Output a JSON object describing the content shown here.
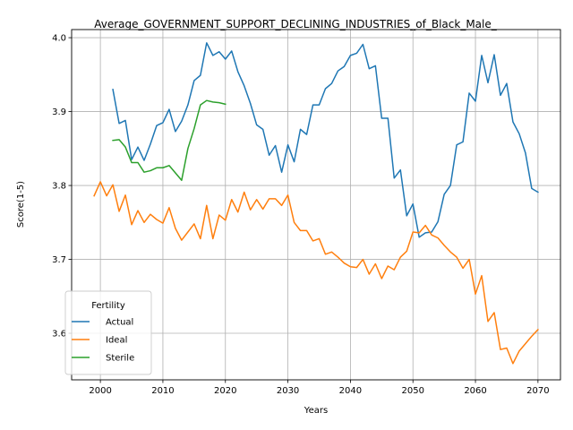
{
  "chart_data": {
    "type": "line",
    "title": "Average_GOVERNMENT_SUPPORT_DECLINING_INDUSTRIES_of_Black_Male_",
    "xlabel": "Years",
    "ylabel": "Score(1-5)",
    "xlim": [
      1995.4,
      2073.6
    ],
    "ylim": [
      3.537,
      4.011
    ],
    "xticks": [
      2000,
      2010,
      2020,
      2030,
      2040,
      2050,
      2060,
      2070
    ],
    "yticks": [
      3.6,
      3.7,
      3.8,
      3.9,
      4.0
    ],
    "xtick_labels": [
      "2000",
      "2010",
      "2020",
      "2030",
      "2040",
      "2050",
      "2060",
      "2070"
    ],
    "ytick_labels": [
      "3.6",
      "3.7",
      "3.8",
      "3.9",
      "4.0"
    ],
    "grid": true,
    "legend": {
      "title": "Fertility",
      "placement": "lower-left"
    },
    "series": [
      {
        "name": "Actual",
        "color": "#1f77b4",
        "x": [
          2002,
          2003,
          2004,
          2005,
          2006,
          2007,
          2008,
          2009,
          2010,
          2011,
          2012,
          2013,
          2014,
          2015,
          2016,
          2017,
          2018,
          2019,
          2020,
          2021,
          2022,
          2023,
          2024,
          2025,
          2026,
          2027,
          2028,
          2029,
          2030,
          2031,
          2032,
          2033,
          2034,
          2035,
          2036,
          2037,
          2038,
          2039,
          2040,
          2041,
          2042,
          2043,
          2044,
          2045,
          2046,
          2047,
          2048,
          2049,
          2050,
          2051,
          2052,
          2053,
          2054,
          2055,
          2056,
          2057,
          2058,
          2059,
          2060,
          2061,
          2062,
          2063,
          2064,
          2065,
          2066,
          2067,
          2068,
          2069,
          2070
        ],
        "y": [
          3.93,
          3.884,
          3.888,
          3.835,
          3.852,
          3.834,
          3.856,
          3.881,
          3.885,
          3.903,
          3.873,
          3.887,
          3.909,
          3.942,
          3.949,
          3.993,
          3.976,
          3.981,
          3.971,
          3.982,
          3.954,
          3.935,
          3.911,
          3.882,
          3.876,
          3.841,
          3.854,
          3.818,
          3.855,
          3.832,
          3.876,
          3.869,
          3.909,
          3.909,
          3.931,
          3.938,
          3.955,
          3.961,
          3.976,
          3.979,
          3.991,
          3.958,
          3.962,
          3.891,
          3.891,
          3.81,
          3.821,
          3.759,
          3.775,
          3.73,
          3.736,
          3.737,
          3.751,
          3.788,
          3.8,
          3.855,
          3.859,
          3.925,
          3.914,
          3.976,
          3.939,
          3.977,
          3.922,
          3.938,
          3.886,
          3.87,
          3.844,
          3.796,
          3.791
        ]
      },
      {
        "name": "Ideal",
        "color": "#ff7f0e",
        "x": [
          1999,
          2000,
          2001,
          2002,
          2003,
          2004,
          2005,
          2006,
          2007,
          2008,
          2009,
          2010,
          2011,
          2012,
          2013,
          2014,
          2015,
          2016,
          2017,
          2018,
          2019,
          2020,
          2021,
          2022,
          2023,
          2024,
          2025,
          2026,
          2027,
          2028,
          2029,
          2030,
          2031,
          2032,
          2033,
          2034,
          2035,
          2036,
          2037,
          2038,
          2039,
          2040,
          2041,
          2042,
          2043,
          2044,
          2045,
          2046,
          2047,
          2048,
          2049,
          2050,
          2051,
          2052,
          2053,
          2054,
          2055,
          2056,
          2057,
          2058,
          2059,
          2060,
          2061,
          2062,
          2063,
          2064,
          2065,
          2066,
          2067,
          2068,
          2069,
          2070
        ],
        "y": [
          3.786,
          3.805,
          3.786,
          3.801,
          3.765,
          3.787,
          3.747,
          3.766,
          3.75,
          3.761,
          3.754,
          3.749,
          3.77,
          3.742,
          3.726,
          3.737,
          3.748,
          3.728,
          3.773,
          3.728,
          3.76,
          3.753,
          3.781,
          3.764,
          3.791,
          3.767,
          3.781,
          3.768,
          3.782,
          3.782,
          3.773,
          3.787,
          3.75,
          3.739,
          3.739,
          3.725,
          3.728,
          3.707,
          3.71,
          3.703,
          3.695,
          3.69,
          3.689,
          3.7,
          3.68,
          3.694,
          3.674,
          3.691,
          3.686,
          3.703,
          3.711,
          3.737,
          3.736,
          3.746,
          3.733,
          3.729,
          3.719,
          3.71,
          3.703,
          3.688,
          3.7,
          3.653,
          3.678,
          3.616,
          3.628,
          3.578,
          3.58,
          3.559,
          3.576,
          3.586,
          3.596,
          3.605
        ]
      },
      {
        "name": "Sterile",
        "color": "#2ca02c",
        "x": [
          2002,
          2003,
          2004,
          2005,
          2006,
          2007,
          2008,
          2009,
          2010,
          2011,
          2012,
          2013,
          2014,
          2015,
          2016,
          2017,
          2018,
          2019,
          2020
        ],
        "y": [
          3.861,
          3.862,
          3.852,
          3.831,
          3.831,
          3.818,
          3.82,
          3.824,
          3.824,
          3.827,
          3.817,
          3.807,
          3.85,
          3.877,
          3.909,
          3.915,
          3.913,
          3.912,
          3.91
        ]
      }
    ]
  }
}
